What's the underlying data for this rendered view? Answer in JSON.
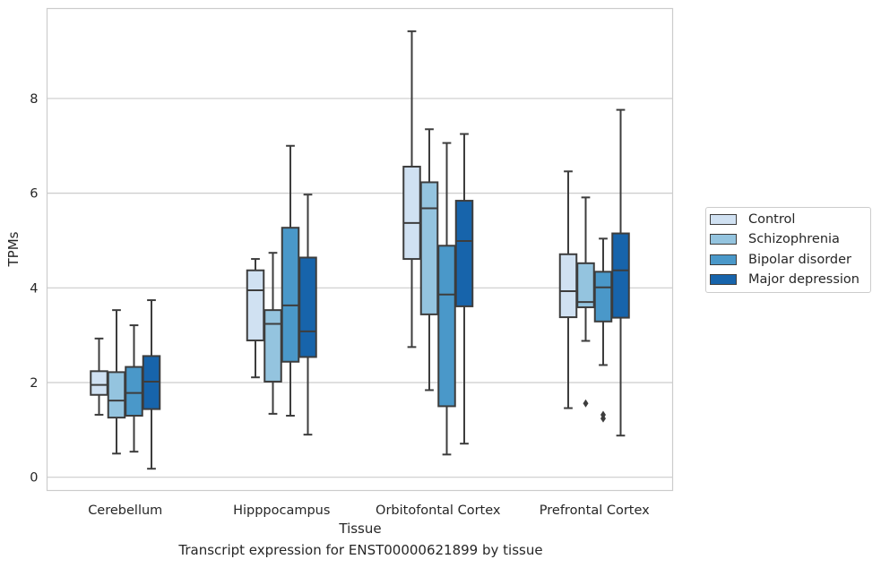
{
  "chart_data": {
    "type": "box",
    "title": "",
    "caption": "Transcript expression for ENST00000621899 by tissue",
    "xlabel": "Tissue",
    "ylabel": "TPMs",
    "ylim": [
      -0.28,
      9.9
    ],
    "yticks": [
      0,
      2,
      4,
      6,
      8
    ],
    "grid": "horizontal",
    "legend_position": "right",
    "categories": [
      "Cerebellum",
      "Hipppocampus",
      "Orbitofontal Cortex",
      "Prefrontal Cortex"
    ],
    "series": [
      {
        "name": "Control",
        "color": "#d0e1f2",
        "boxes": [
          {
            "whisker_low": 1.32,
            "q1": 1.74,
            "median": 1.95,
            "q3": 2.24,
            "whisker_high": 2.93,
            "outliers": []
          },
          {
            "whisker_low": 2.11,
            "q1": 2.89,
            "median": 3.95,
            "q3": 4.37,
            "whisker_high": 4.61,
            "outliers": []
          },
          {
            "whisker_low": 2.75,
            "q1": 4.61,
            "median": 5.37,
            "q3": 6.56,
            "whisker_high": 9.42,
            "outliers": []
          },
          {
            "whisker_low": 1.46,
            "q1": 3.38,
            "median": 3.93,
            "q3": 4.71,
            "whisker_high": 6.46,
            "outliers": []
          }
        ]
      },
      {
        "name": "Schizophrenia",
        "color": "#94c4df",
        "boxes": [
          {
            "whisker_low": 0.5,
            "q1": 1.26,
            "median": 1.62,
            "q3": 2.22,
            "whisker_high": 3.53,
            "outliers": []
          },
          {
            "whisker_low": 1.34,
            "q1": 2.02,
            "median": 3.24,
            "q3": 3.53,
            "whisker_high": 4.74,
            "outliers": []
          },
          {
            "whisker_low": 1.84,
            "q1": 3.44,
            "median": 5.68,
            "q3": 6.23,
            "whisker_high": 7.35,
            "outliers": []
          },
          {
            "whisker_low": 2.88,
            "q1": 3.59,
            "median": 3.7,
            "q3": 4.52,
            "whisker_high": 5.91,
            "outliers": [
              1.56
            ]
          }
        ]
      },
      {
        "name": "Bipolar disorder",
        "color": "#4a98c9",
        "boxes": [
          {
            "whisker_low": 0.54,
            "q1": 1.3,
            "median": 1.78,
            "q3": 2.33,
            "whisker_high": 3.21,
            "outliers": []
          },
          {
            "whisker_low": 1.3,
            "q1": 2.44,
            "median": 3.63,
            "q3": 5.27,
            "whisker_high": 7.0,
            "outliers": []
          },
          {
            "whisker_low": 0.48,
            "q1": 1.5,
            "median": 3.86,
            "q3": 4.89,
            "whisker_high": 7.06,
            "outliers": []
          },
          {
            "whisker_low": 2.37,
            "q1": 3.29,
            "median": 4.01,
            "q3": 4.34,
            "whisker_high": 5.04,
            "outliers": [
              1.24,
              1.32
            ]
          }
        ]
      },
      {
        "name": "Major depression",
        "color": "#1764ab",
        "boxes": [
          {
            "whisker_low": 0.18,
            "q1": 1.44,
            "median": 2.02,
            "q3": 2.56,
            "whisker_high": 3.74,
            "outliers": []
          },
          {
            "whisker_low": 0.9,
            "q1": 2.54,
            "median": 3.08,
            "q3": 4.64,
            "whisker_high": 5.97,
            "outliers": []
          },
          {
            "whisker_low": 0.71,
            "q1": 3.61,
            "median": 4.99,
            "q3": 5.84,
            "whisker_high": 7.25,
            "outliers": []
          },
          {
            "whisker_low": 0.88,
            "q1": 3.37,
            "median": 4.37,
            "q3": 5.15,
            "whisker_high": 7.76,
            "outliers": []
          }
        ]
      }
    ]
  }
}
